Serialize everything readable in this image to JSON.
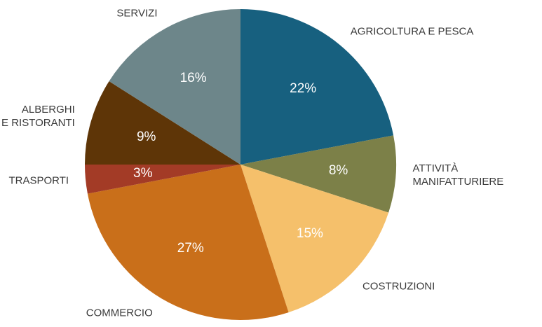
{
  "chart_data": {
    "type": "pie",
    "categories": [
      "AGRICOLTURA E PESCA",
      "ATTIVITÀ MANIFATTURIERE",
      "COSTRUZIONI",
      "COMMERCIO",
      "TRASPORTI",
      "ALBERGHI\nE RISTORANTI",
      "SERVIZI"
    ],
    "values": [
      22,
      8,
      15,
      27,
      3,
      9,
      16
    ],
    "value_labels": [
      "22%",
      "8%",
      "15%",
      "27%",
      "3%",
      "9%",
      "16%"
    ],
    "colors": [
      "#17607f",
      "#7c8048",
      "#f5c06b",
      "#c96f1a",
      "#a33b26",
      "#5e3507",
      "#6d868a"
    ]
  }
}
